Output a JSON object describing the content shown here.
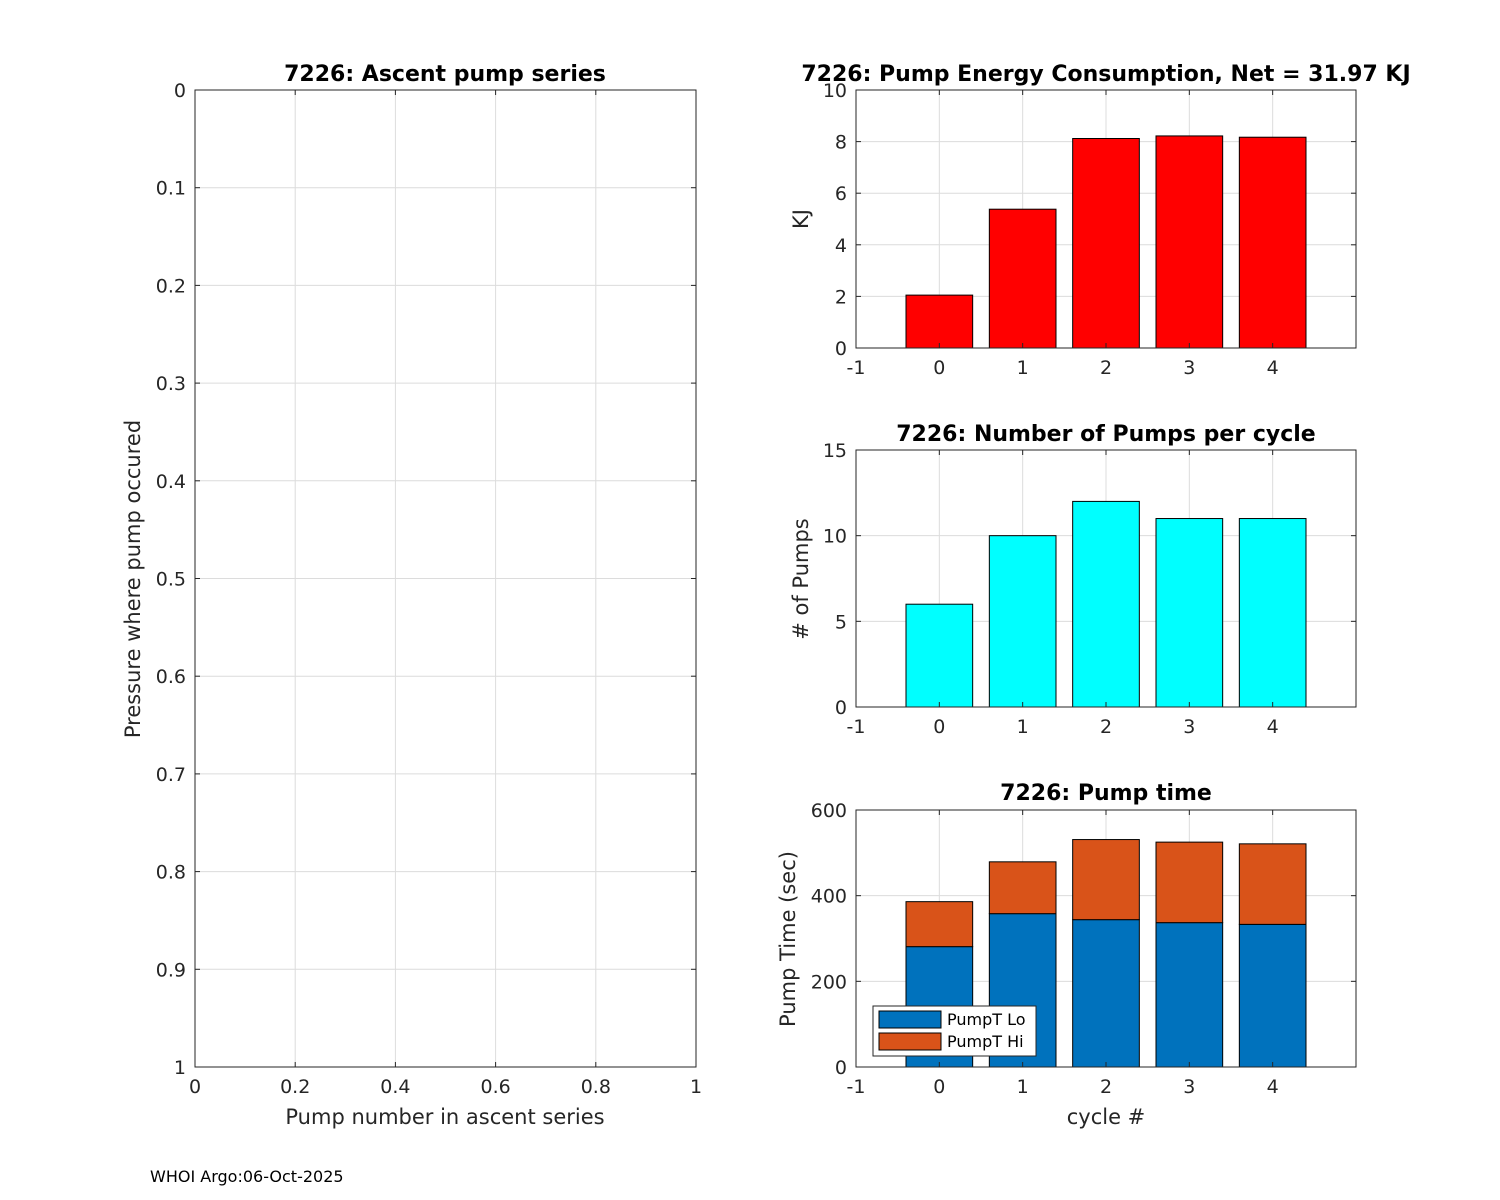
{
  "footer": "WHOI Argo:06-Oct-2025",
  "chart_data": [
    {
      "type": "line",
      "title": "7226: Ascent pump series",
      "xlabel": "Pump number in ascent series",
      "ylabel": "Pressure where pump occured",
      "xlim": [
        0,
        1
      ],
      "ylim": [
        0,
        1
      ],
      "y_reversed": true,
      "xticks": [
        "0",
        "0.2",
        "0.4",
        "0.6",
        "0.8",
        "1"
      ],
      "yticks": [
        "0",
        "0.1",
        "0.2",
        "0.3",
        "0.4",
        "0.5",
        "0.6",
        "0.7",
        "0.8",
        "0.9",
        "1"
      ],
      "grid": true,
      "series": []
    },
    {
      "type": "bar",
      "title": "7226: Pump Energy Consumption,  Net =  31.97 KJ",
      "xlabel": "",
      "ylabel": "KJ",
      "categories": [
        0,
        1,
        2,
        3,
        4
      ],
      "values": [
        2.05,
        5.38,
        8.12,
        8.22,
        8.17
      ],
      "xlim": [
        -1,
        5
      ],
      "ylim": [
        0,
        10
      ],
      "xticks": [
        "-1",
        "0",
        "1",
        "2",
        "3",
        "4"
      ],
      "yticks": [
        "0",
        "2",
        "4",
        "6",
        "8",
        "10"
      ],
      "color": "#ff0000",
      "grid": true
    },
    {
      "type": "bar",
      "title": "7226: Number of Pumps per cycle",
      "xlabel": "",
      "ylabel": "# of Pumps",
      "categories": [
        0,
        1,
        2,
        3,
        4
      ],
      "values": [
        6,
        10,
        12,
        11,
        11
      ],
      "xlim": [
        -1,
        5
      ],
      "ylim": [
        0,
        15
      ],
      "xticks": [
        "-1",
        "0",
        "1",
        "2",
        "3",
        "4"
      ],
      "yticks": [
        "0",
        "5",
        "10",
        "15"
      ],
      "color": "#00ffff",
      "grid": true
    },
    {
      "type": "bar",
      "stacked": true,
      "title": "7226: Pump time",
      "xlabel": "cycle #",
      "ylabel": "Pump Time (sec)",
      "categories": [
        0,
        1,
        2,
        3,
        4
      ],
      "series": [
        {
          "name": "PumpT Lo",
          "values": [
            281,
            358,
            344,
            337,
            333
          ],
          "color": "#0072bd"
        },
        {
          "name": "PumpT Hi",
          "values": [
            105,
            121,
            187,
            188,
            188
          ],
          "color": "#d95319"
        }
      ],
      "xlim": [
        -1,
        5
      ],
      "ylim": [
        0,
        600
      ],
      "xticks": [
        "-1",
        "0",
        "1",
        "2",
        "3",
        "4"
      ],
      "yticks": [
        "0",
        "200",
        "400",
        "600"
      ],
      "legend": "bottom-left",
      "grid": true
    }
  ]
}
